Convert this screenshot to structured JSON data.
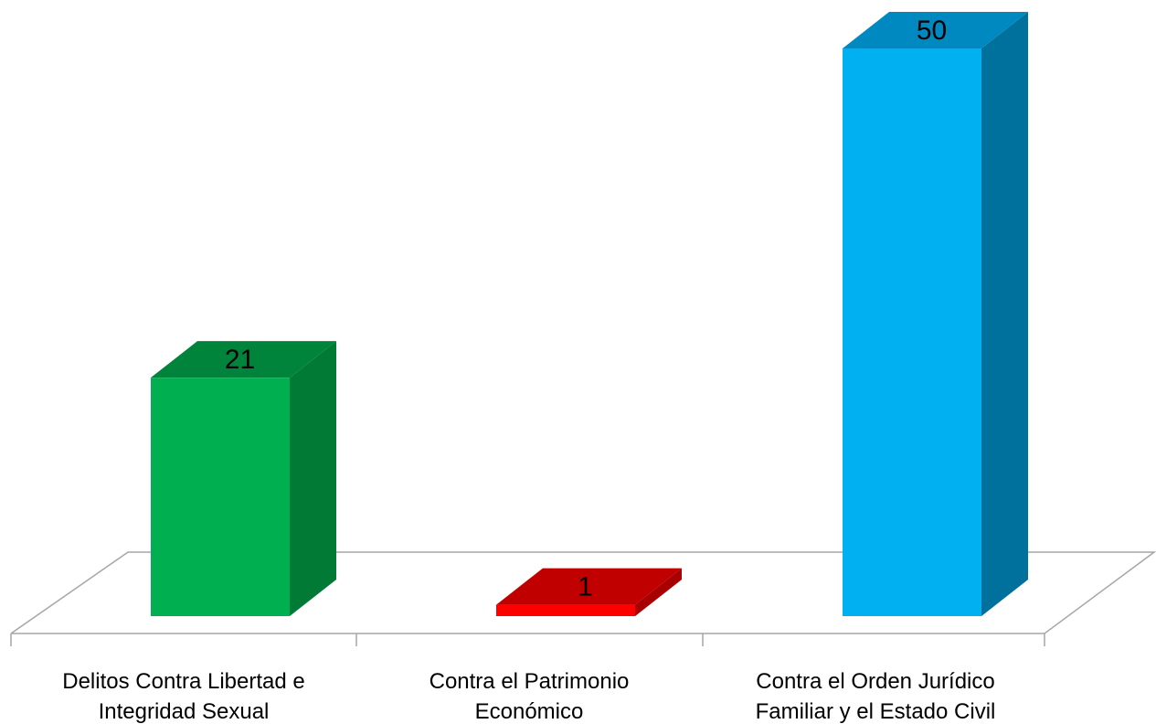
{
  "chart_data": {
    "type": "bar",
    "title": "",
    "xlabel": "",
    "ylabel": "",
    "ylim": [
      0,
      50
    ],
    "grid": false,
    "legend": "none",
    "categories": [
      [
        "Delitos  Contra Libertad e",
        "Integridad Sexual"
      ],
      [
        "Contra el Patrimonio",
        "Económico"
      ],
      [
        "Contra el Orden Jurídico",
        "Familiar y el Estado Civil"
      ]
    ],
    "values": [
      21,
      1,
      50
    ],
    "value_labels": [
      "21",
      "1",
      "50"
    ],
    "colors": [
      {
        "front": "#00b050",
        "side": "#007a35",
        "top": "#00843c"
      },
      {
        "front": "#ff0000",
        "side": "#a80000",
        "top": "#c00000"
      },
      {
        "front": "#00b0f0",
        "side": "#00709c",
        "top": "#0088c0"
      }
    ]
  }
}
